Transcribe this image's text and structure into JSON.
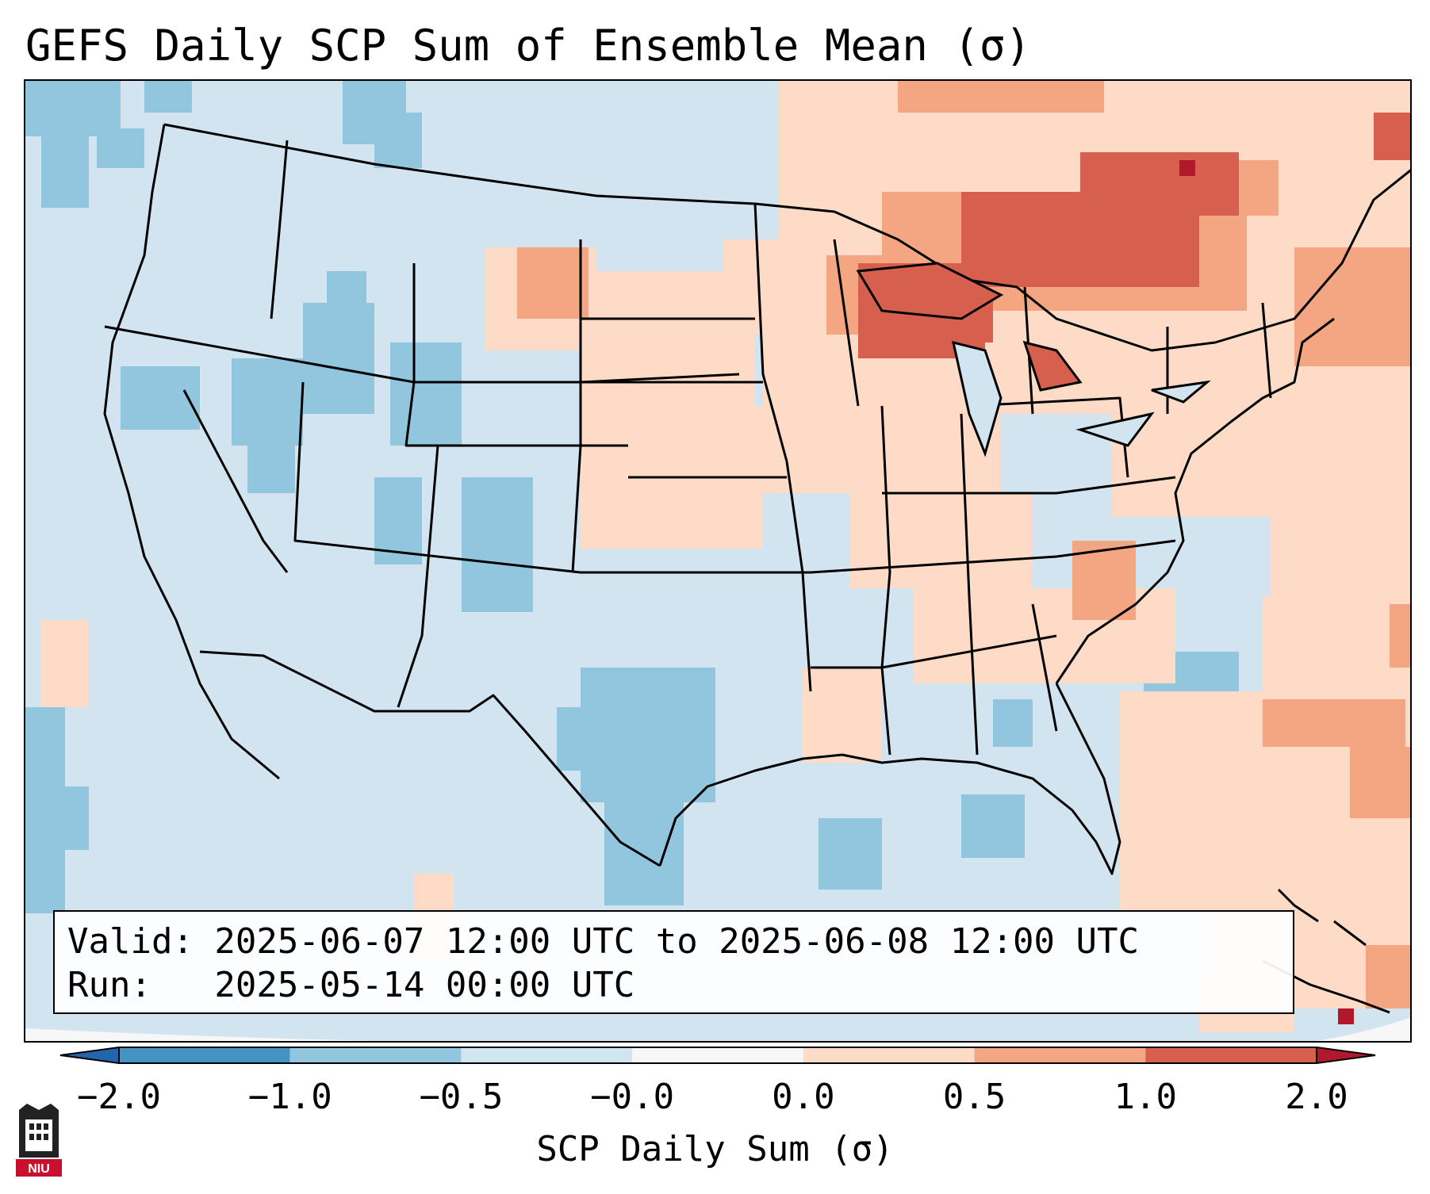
{
  "title": "GEFS Daily SCP Sum of Ensemble Mean (σ)",
  "info": {
    "valid_line": "Valid: 2025-06-07 12:00 UTC to 2025-06-08 12:00 UTC",
    "run_line": "Run:   2025-05-14 00:00 UTC"
  },
  "colorbar": {
    "label": "SCP Daily Sum (σ)",
    "ticks": [
      "−2.0",
      "−1.0",
      "−0.5",
      "−0.0",
      "0.0",
      "0.5",
      "1.0",
      "2.0"
    ],
    "bins": [
      {
        "from": -2.0,
        "to": -1.0,
        "color": "#4393c3"
      },
      {
        "from": -1.0,
        "to": -0.5,
        "color": "#92c5de"
      },
      {
        "from": -0.5,
        "to": -0.0,
        "color": "#d1e5f0"
      },
      {
        "from": -0.0,
        "to": 0.0,
        "color": "#f7f7f7"
      },
      {
        "from": 0.0,
        "to": 0.5,
        "color": "#fddbc7"
      },
      {
        "from": 0.5,
        "to": 1.0,
        "color": "#f4a582"
      },
      {
        "from": 1.0,
        "to": 2.0,
        "color": "#d6604d"
      }
    ],
    "extend_low_color": "#2166ac",
    "extend_high_color": "#b2182b"
  },
  "logo": {
    "text": "NIU",
    "color": "#c8102e"
  }
}
